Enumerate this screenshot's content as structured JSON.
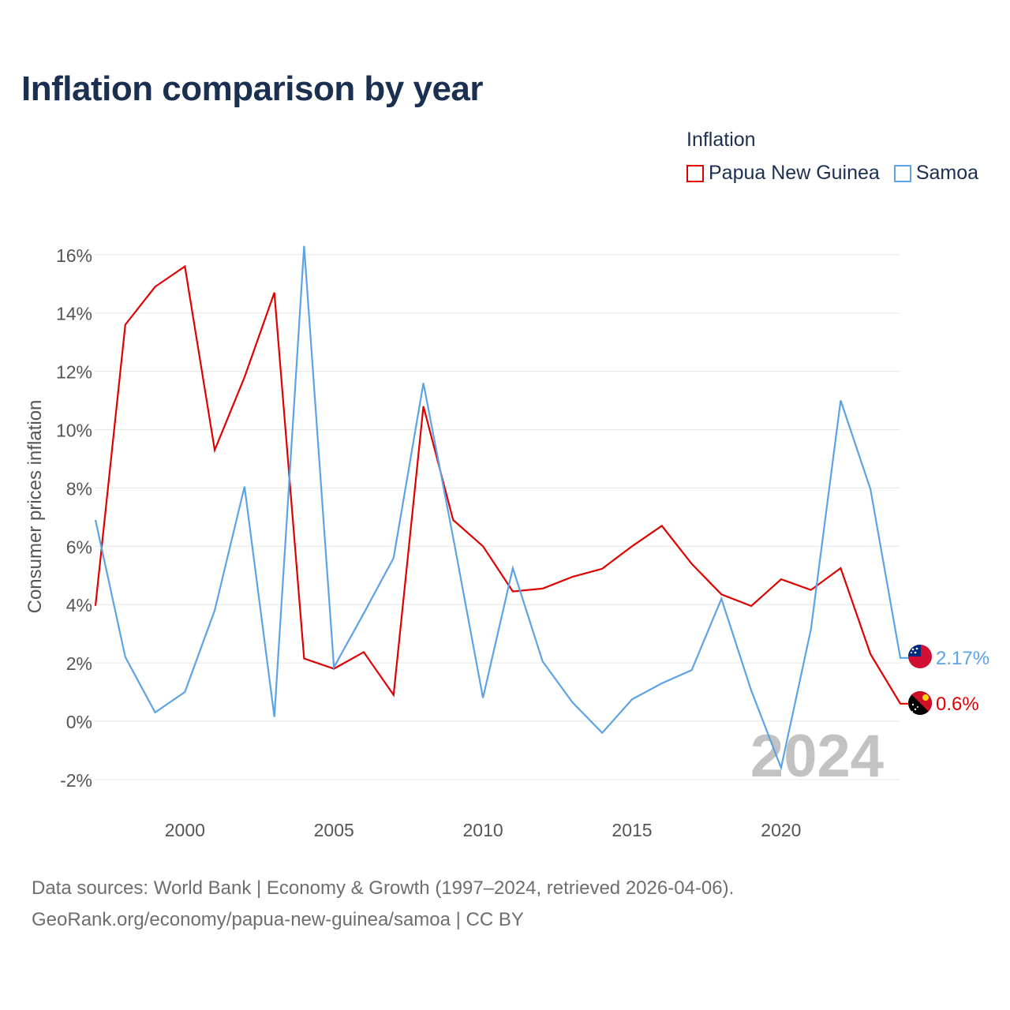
{
  "title": "Inflation comparison by year",
  "legend": {
    "title": "Inflation",
    "items": [
      {
        "label": "Papua New Guinea",
        "color": "#e00000"
      },
      {
        "label": "Samoa",
        "color": "#5ca3e6"
      }
    ]
  },
  "chart_data": {
    "type": "line",
    "title": "Inflation comparison by year",
    "xlabel": "",
    "ylabel": "Consumer prices inflation",
    "xlim": [
      1997,
      2024
    ],
    "ylim": [
      -2.5,
      16.5
    ],
    "grid": true,
    "x_ticks": [
      2000,
      2005,
      2010,
      2015,
      2020
    ],
    "y_ticks": [
      -2,
      0,
      2,
      4,
      6,
      8,
      10,
      12,
      14,
      16
    ],
    "y_tick_labels": [
      "-2%",
      "0%",
      "2%",
      "4%",
      "6%",
      "8%",
      "10%",
      "12%",
      "14%",
      "16%"
    ],
    "x": [
      1997,
      1998,
      1999,
      2000,
      2001,
      2002,
      2003,
      2004,
      2005,
      2006,
      2007,
      2008,
      2009,
      2010,
      2011,
      2012,
      2013,
      2014,
      2015,
      2016,
      2017,
      2018,
      2019,
      2020,
      2021,
      2022,
      2023,
      2024
    ],
    "series": [
      {
        "name": "Papua New Guinea",
        "color": "#e00000",
        "values": [
          3.96,
          13.6,
          14.9,
          15.6,
          9.3,
          11.8,
          14.7,
          2.15,
          1.8,
          2.37,
          0.9,
          10.8,
          6.9,
          6.0,
          4.45,
          4.55,
          4.95,
          5.23,
          6.0,
          6.7,
          5.4,
          4.35,
          3.95,
          4.87,
          4.5,
          5.25,
          2.3,
          0.6
        ],
        "end_label": "0.6%"
      },
      {
        "name": "Samoa",
        "color": "#5ca3e6",
        "values": [
          6.9,
          2.2,
          0.3,
          1.0,
          3.8,
          8.05,
          0.15,
          16.3,
          1.85,
          3.7,
          5.6,
          11.6,
          6.3,
          0.8,
          5.25,
          2.05,
          0.65,
          -0.4,
          0.75,
          1.3,
          1.75,
          4.2,
          1.05,
          -1.6,
          3.15,
          11.0,
          7.95,
          2.17
        ],
        "end_label": "2.17%"
      }
    ],
    "year_watermark": "2024"
  },
  "source": {
    "line1": "Data sources: World Bank | Economy & Growth (1997–2024, retrieved 2026-04-06).",
    "line2": "GeoRank.org/economy/papua-new-guinea/samoa | CC BY"
  }
}
